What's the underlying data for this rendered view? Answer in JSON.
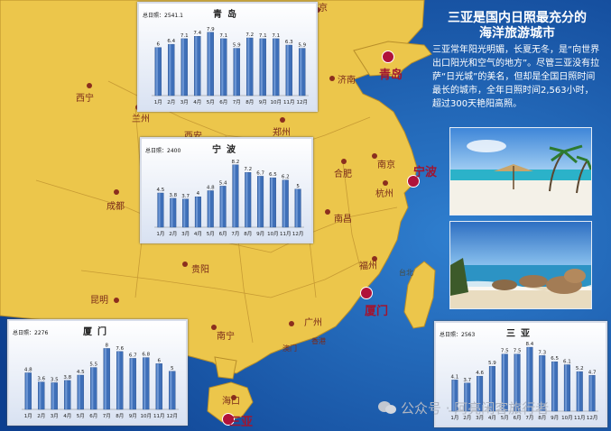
{
  "headline": {
    "line1": "三亚是国内日照最充分的",
    "line2": "海洋旅游城市"
  },
  "body_text": "三亚常年阳光明媚，长夏无冬，是“向世界出口阳光和空气的地方”。尽管三亚没有拉萨“日光城”的美名，但却是全国日照时间最长的城市，全年日照时间2,563小时，超过300天艳阳高照。",
  "watermark": "公众号 · 阿亮闲客旅行者",
  "map": {
    "highlighted_cities": [
      {
        "name": "青岛"
      },
      {
        "name": "宁波"
      },
      {
        "name": "厦门"
      },
      {
        "name": "三亚"
      }
    ],
    "cities": [
      {
        "name": "北京"
      },
      {
        "name": "济南"
      },
      {
        "name": "西宁"
      },
      {
        "name": "兰州"
      },
      {
        "name": "西安"
      },
      {
        "name": "郑州"
      },
      {
        "name": "合肥"
      },
      {
        "name": "南京"
      },
      {
        "name": "杭州"
      },
      {
        "name": "成都"
      },
      {
        "name": "南昌"
      },
      {
        "name": "福州"
      },
      {
        "name": "台北"
      },
      {
        "name": "贵阳"
      },
      {
        "name": "昆明"
      },
      {
        "name": "南宁"
      },
      {
        "name": "广州"
      },
      {
        "name": "香港"
      },
      {
        "name": "澳门"
      },
      {
        "name": "海口"
      }
    ]
  },
  "chart_data": [
    {
      "type": "bar",
      "title": "青岛",
      "total_label": "总日照：2541.1",
      "categories": [
        "1月",
        "2月",
        "3月",
        "4月",
        "5月",
        "6月",
        "7月",
        "8月",
        "9月",
        "10月",
        "11月",
        "12月"
      ],
      "values": [
        6,
        6.4,
        7.1,
        7.4,
        7.9,
        7.1,
        5.9,
        7.2,
        7.1,
        7.1,
        6.3,
        5.9
      ],
      "value_labels": [
        "6",
        "6.4",
        "7.1",
        "7.4",
        "7.9",
        "7.1",
        "5.9",
        "7.2",
        "7.1",
        "7.1",
        "6.3",
        "5.9"
      ],
      "ylim": [
        0,
        9
      ]
    },
    {
      "type": "bar",
      "title": "宁波",
      "total_label": "总日照：2400",
      "categories": [
        "1月",
        "2月",
        "3月",
        "4月",
        "5月",
        "6月",
        "7月",
        "8月",
        "9月",
        "10月",
        "11月",
        "12月"
      ],
      "values": [
        4.5,
        3.8,
        3.7,
        4,
        4.8,
        5.4,
        8.2,
        7.2,
        6.7,
        6.5,
        6.2,
        5
      ],
      "value_labels": [
        "4.5",
        "3.8",
        "3.7",
        "4",
        "4.8",
        "5.4",
        "8.2",
        "7.2",
        "6.7",
        "6.5",
        "6.2",
        "5"
      ],
      "ylim": [
        0,
        9
      ]
    },
    {
      "type": "bar",
      "title": "厦门",
      "total_label": "总日照：2276",
      "categories": [
        "1月",
        "2月",
        "3月",
        "4月",
        "5月",
        "6月",
        "7月",
        "8月",
        "9月",
        "10月",
        "11月",
        "12月"
      ],
      "values": [
        4.8,
        3.6,
        3.5,
        3.8,
        4.5,
        5.5,
        8,
        7.6,
        6.7,
        6.8,
        6,
        5
      ],
      "value_labels": [
        "4.8",
        "3.6",
        "3.5",
        "3.8",
        "4.5",
        "5.5",
        "8",
        "7.6",
        "6.7",
        "6.8",
        "6",
        "5"
      ],
      "ylim": [
        0,
        9
      ]
    },
    {
      "type": "bar",
      "title": "三亚",
      "total_label": "总日照：2563",
      "categories": [
        "1月",
        "2月",
        "3月",
        "4月",
        "5月",
        "6月",
        "7月",
        "8月",
        "9月",
        "10月",
        "11月",
        "12月"
      ],
      "values": [
        4.1,
        3.7,
        4.6,
        5.9,
        7.5,
        7.5,
        8.4,
        7.3,
        6.5,
        6.1,
        5.2,
        4.7
      ],
      "value_labels": [
        "4.1",
        "3.7",
        "4.6",
        "5.9",
        "7.5",
        "7.5",
        "8.4",
        "7.3",
        "6.5",
        "6.1",
        "5.2",
        "4.7"
      ],
      "ylim": [
        0,
        9
      ]
    }
  ],
  "colors": {
    "sea": "#1a55a8",
    "land": "#ecc64b",
    "bar": "#3e6fb8",
    "highlight_city": "#b0123a"
  }
}
